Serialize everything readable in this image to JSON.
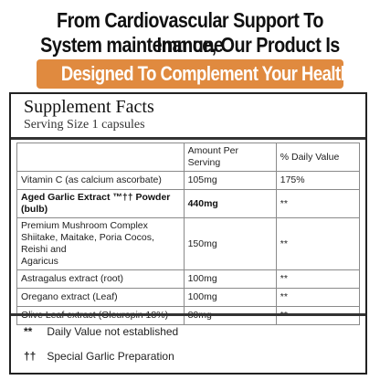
{
  "header": {
    "line1": "From Cardiovascular Support To Immune",
    "line2": "System maintenance, Our Product Is",
    "banner": "Designed To Complement Your Health",
    "banner_color": "#e08a3f"
  },
  "panel": {
    "title": "Supplement Facts",
    "serving": "Serving Size 1 capsules",
    "columns": [
      "",
      "Amount Per Serving",
      "% Daily Value"
    ],
    "rows": [
      {
        "name": "Vitamin C (as calcium ascorbate)",
        "amount": "105mg",
        "dv": "175%"
      },
      {
        "name": "Aged Garlic Extract ™†† Powder (bulb)",
        "amount": "440mg",
        "dv": "**"
      },
      {
        "name": "Premium Mushroom Complex\nShiitake, Maitake, Poria Cocos, Reishi and\nAgaricus",
        "amount": "150mg",
        "dv": "**"
      },
      {
        "name": "Astragalus extract (root)",
        "amount": "100mg",
        "dv": "**"
      },
      {
        "name": "Oregano extract (Leaf)",
        "amount": "100mg",
        "dv": "**"
      },
      {
        "name": "Olive Leaf extract (Oleuropin 18%)",
        "amount": "80mg",
        "dv": "**"
      }
    ],
    "notes": [
      {
        "symbol": "**",
        "text": "Daily Value not established"
      },
      {
        "symbol": "††",
        "text": "Special Garlic Preparation"
      }
    ]
  }
}
